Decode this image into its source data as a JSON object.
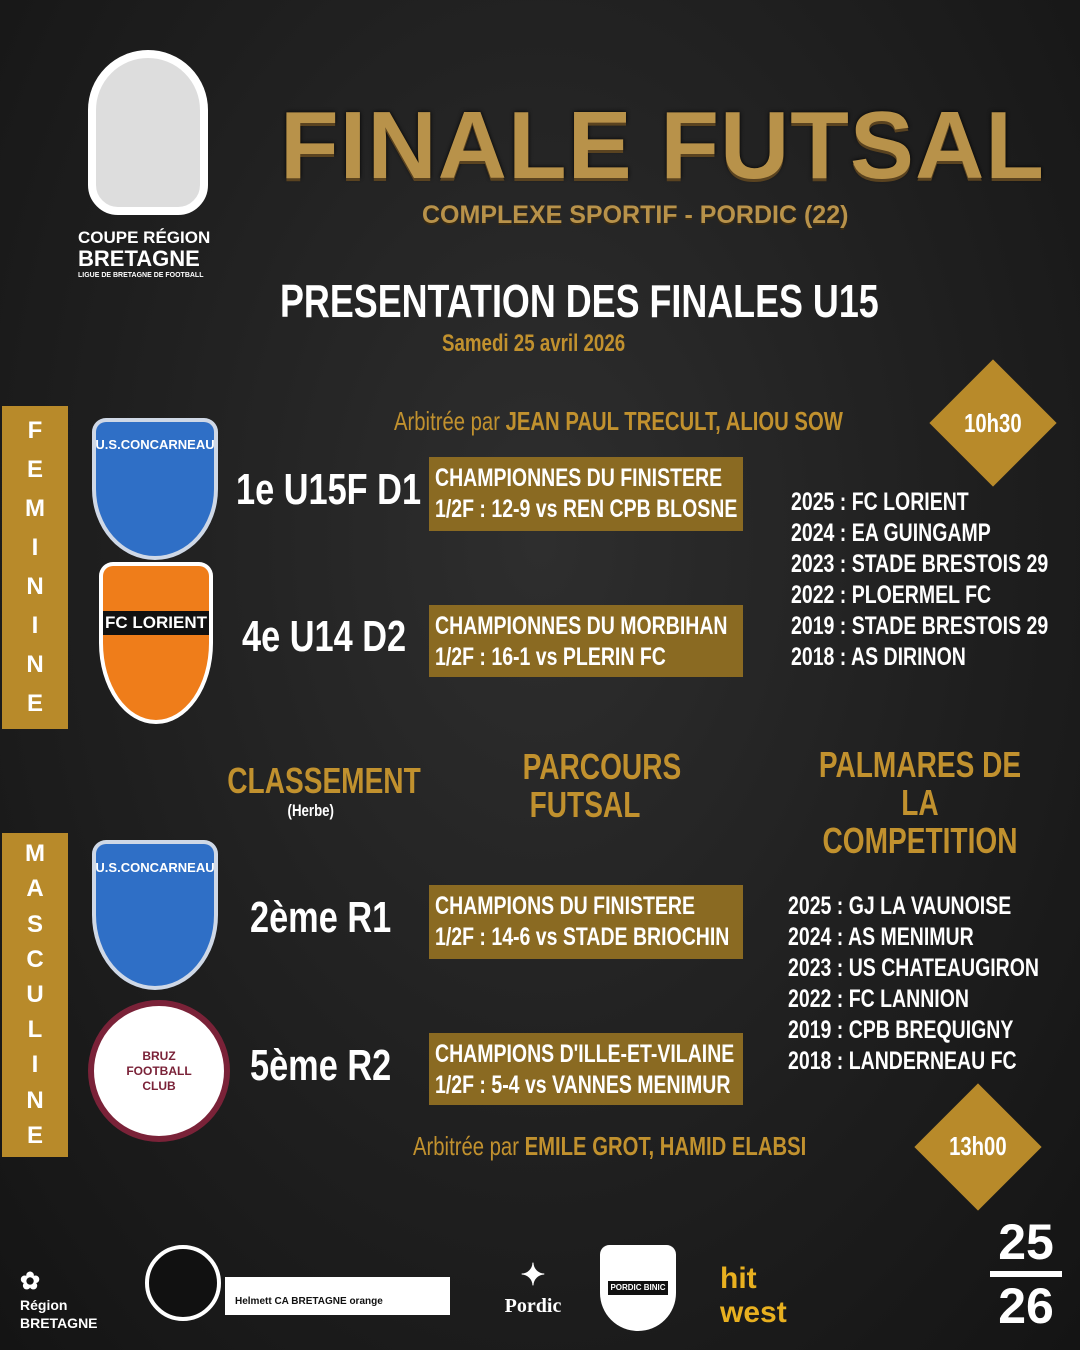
{
  "logo": {
    "line1": "COUPE RÉGION",
    "line2": "BRETAGNE",
    "line3": "LIGUE DE BRETAGNE DE FOOTBALL"
  },
  "header": {
    "title": "FINALE FUTSAL",
    "venue": "COMPLEXE SPORTIF - PORDIC (22)",
    "presentation": "PRESENTATION DES FINALES U15",
    "date": "Samedi 25 avril 2026"
  },
  "colors": {
    "gold": "#c1912e",
    "box": "#8a6a22",
    "background": "#1c1c1c"
  },
  "columns": {
    "classement": "CLASSEMENT",
    "classement_note": "(Herbe)",
    "parcours": "PARCOURS FUTSAL",
    "palmares": "PALMARES DE LA COMPETITION"
  },
  "feminine": {
    "label": [
      "F",
      "E",
      "M",
      "I",
      "N",
      "I",
      "N",
      "E"
    ],
    "referees_prefix": "Arbitrée par",
    "referees": "JEAN PAUL TRECULT, ALIOU SOW",
    "time": "10h30",
    "teams": [
      {
        "logo": "U.S.CONCARNEAU",
        "rank": "1e U15F D1",
        "title": "CHAMPIONNES DU FINISTERE",
        "result": "1/2F : 12-9 vs REN CPB BLOSNE"
      },
      {
        "logo": "FC LORIENT",
        "rank": "4e U14 D2",
        "title": "CHAMPIONNES DU MORBIHAN",
        "result": "1/2F : 16-1 vs PLERIN FC"
      }
    ],
    "palmares": [
      "2025 : FC LORIENT",
      "2024 : EA GUINGAMP",
      "2023 : STADE BRESTOIS 29",
      "2022 : PLOERMEL FC",
      "2019 : STADE BRESTOIS 29",
      "2018 : AS DIRINON"
    ]
  },
  "masculine": {
    "label": [
      "M",
      "A",
      "S",
      "C",
      "U",
      "L",
      "I",
      "N",
      "E"
    ],
    "referees_prefix": "Arbitrée par",
    "referees": "EMILE GROT, HAMID ELABSI",
    "time": "13h00",
    "teams": [
      {
        "logo": "U.S.CONCARNEAU",
        "rank": "2ème R1",
        "title": "CHAMPIONS DU FINISTERE",
        "result": "1/2F : 14-6 vs STADE BRIOCHIN"
      },
      {
        "logo": "BRUZ FOOTBALL CLUB",
        "rank": "5ème R2",
        "title": "CHAMPIONS D'ILLE-ET-VILAINE",
        "result": "1/2F : 5-4 vs VANNES MENIMUR"
      }
    ],
    "palmares": [
      "2025 : GJ LA VAUNOISE",
      "2024 : AS MENIMUR",
      "2023 : US CHATEAUGIRON",
      "2022 : FC LANNION",
      "2019 : CPB BREQUIGNY",
      "2018 : LANDERNEAU FC"
    ]
  },
  "sponsors": {
    "region": "Région BRETAGNE",
    "partners": "Helmett  CA BRETAGNE  orange",
    "pordic": "Pordic",
    "pordic_binic": "PORDIC BINIC",
    "hitwest": "hit west",
    "season_top": "25",
    "season_bottom": "26"
  }
}
